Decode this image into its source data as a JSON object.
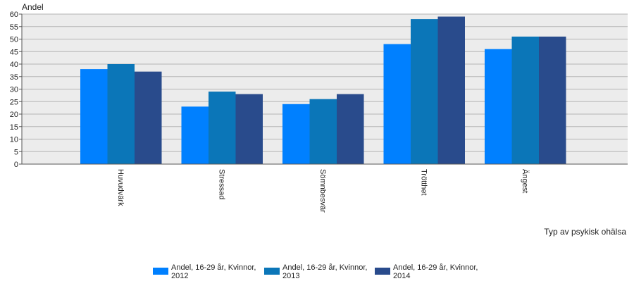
{
  "chart_data": {
    "type": "bar",
    "ylabel": "Andel",
    "xlabel": "Typ av psykisk ohälsa",
    "ylim": [
      0,
      60
    ],
    "ytick_step": 5,
    "grid": true,
    "legend_position": "bottom-center",
    "plot_background": "#ececec",
    "grid_color": "#b5b5b5",
    "categories": [
      "Huvudvärk",
      "Stressad",
      "Sömnbesvär",
      "Trötthet",
      "Ängest"
    ],
    "series": [
      {
        "name": "Andel, 16-29 år, Kvinnor, 2012",
        "color": "#0080ff",
        "values": [
          38,
          23,
          24,
          48,
          46
        ]
      },
      {
        "name": "Andel, 16-29 år, Kvinnor, 2013",
        "color": "#0b76b8",
        "values": [
          40,
          29,
          26,
          58,
          51
        ]
      },
      {
        "name": "Andel, 16-29 år, Kvinnor, 2014",
        "color": "#294b8c",
        "values": [
          37,
          28,
          28,
          59,
          51
        ]
      }
    ]
  }
}
